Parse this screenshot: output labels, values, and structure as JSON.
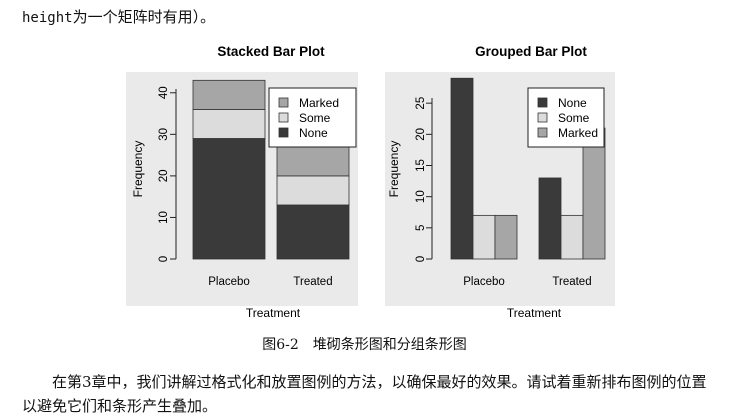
{
  "top_text": {
    "code": "height",
    "rest": "为一个矩阵时有用）。"
  },
  "colors": {
    "None": "#3a3a3a",
    "Some": "#dcdcdc",
    "Marked": "#a6a6a6"
  },
  "chart_data": [
    {
      "type": "bar",
      "stacked": true,
      "title": "Stacked Bar Plot",
      "xlabel": "Treatment",
      "ylabel": "Frequency",
      "categories": [
        "Placebo",
        "Treated"
      ],
      "series": [
        {
          "name": "None",
          "values": [
            29,
            13
          ]
        },
        {
          "name": "Some",
          "values": [
            7,
            7
          ]
        },
        {
          "name": "Marked",
          "values": [
            7,
            21
          ]
        }
      ],
      "legend": [
        "Marked",
        "Some",
        "None"
      ],
      "legend_position": "top-right",
      "yticks": [
        0,
        10,
        20,
        30,
        40
      ],
      "ylim": [
        0,
        45
      ]
    },
    {
      "type": "bar",
      "stacked": false,
      "title": "Grouped Bar Plot",
      "xlabel": "Treatment",
      "ylabel": "Frequency",
      "categories": [
        "Placebo",
        "Treated"
      ],
      "series": [
        {
          "name": "None",
          "values": [
            29,
            13
          ]
        },
        {
          "name": "Some",
          "values": [
            7,
            7
          ]
        },
        {
          "name": "Marked",
          "values": [
            7,
            21
          ]
        }
      ],
      "legend": [
        "None",
        "Some",
        "Marked"
      ],
      "legend_position": "top-right",
      "yticks": [
        0,
        5,
        10,
        15,
        20,
        25
      ],
      "ylim": [
        0,
        30
      ]
    }
  ],
  "caption": "图6-2　堆砌条形图和分组条形图",
  "paragraph": "在第3章中，我们讲解过格式化和放置图例的方法，以确保最好的效果。请试着重新排布图例的位置以避免它们和条形产生叠加。"
}
